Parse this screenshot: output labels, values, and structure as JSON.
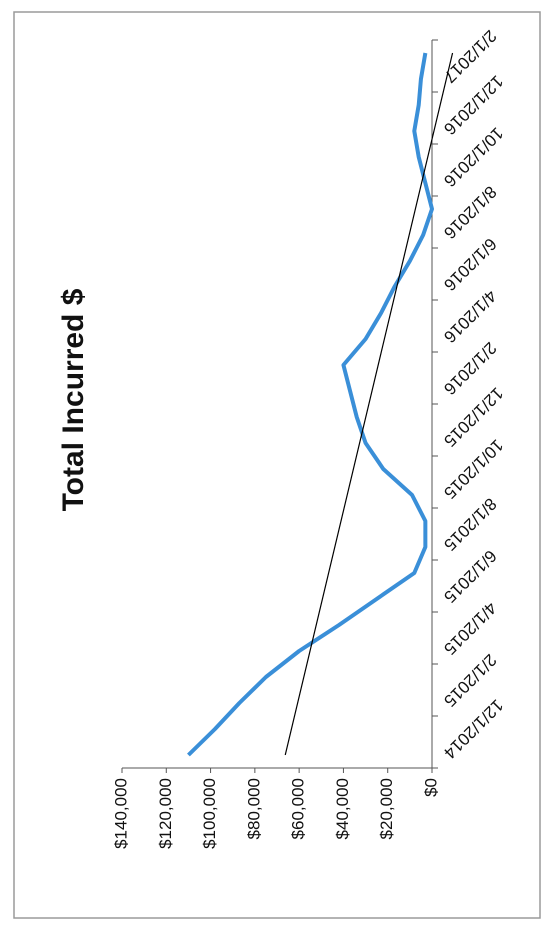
{
  "chart_data": {
    "type": "line",
    "title": "Total Incurred $",
    "categories": [
      "12/1/2014",
      null,
      "2/1/2015",
      null,
      "4/1/2015",
      null,
      "6/1/2015",
      null,
      "8/1/2015",
      null,
      "10/1/2015",
      null,
      "12/1/2015",
      null,
      "2/1/2016",
      null,
      "4/1/2016",
      null,
      "6/1/2016",
      null,
      "8/1/2016",
      null,
      "10/1/2016",
      null,
      "12/1/2016",
      null,
      "2/1/2017",
      null
    ],
    "series": [
      {
        "color": "#3a8fd8",
        "values": [
          110000,
          98000,
          87000,
          75000,
          60000,
          42000,
          25000,
          8000,
          3000,
          3000,
          9000,
          22000,
          30000,
          34000,
          37000,
          40000,
          30000,
          23000,
          17000,
          10000,
          4000,
          0,
          3000,
          6000,
          8000,
          6000,
          5000,
          3000
        ]
      }
    ],
    "trendline": true,
    "trend_color": "#000000",
    "ylim": [
      0,
      140000
    ],
    "yticks": [
      {
        "value": 0,
        "label": "$0"
      },
      {
        "value": 20000,
        "label": "$20,000"
      },
      {
        "value": 40000,
        "label": "$40,000"
      },
      {
        "value": 60000,
        "label": "$60,000"
      },
      {
        "value": 80000,
        "label": "$80,000"
      },
      {
        "value": 100000,
        "label": "$100,000"
      },
      {
        "value": 120000,
        "label": "$120,000"
      },
      {
        "value": 140000,
        "label": "$140,000"
      }
    ]
  }
}
